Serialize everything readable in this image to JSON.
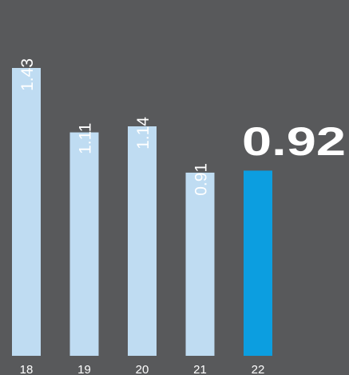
{
  "chart_data": {
    "type": "bar",
    "categories": [
      "18",
      "19",
      "20",
      "21",
      "22"
    ],
    "values": [
      1.43,
      1.11,
      1.14,
      0.91,
      0.92
    ],
    "colors": [
      "#bfdcf2",
      "#bfdcf2",
      "#bfdcf2",
      "#bfdcf2",
      "#0c9ee0"
    ]
  }
}
